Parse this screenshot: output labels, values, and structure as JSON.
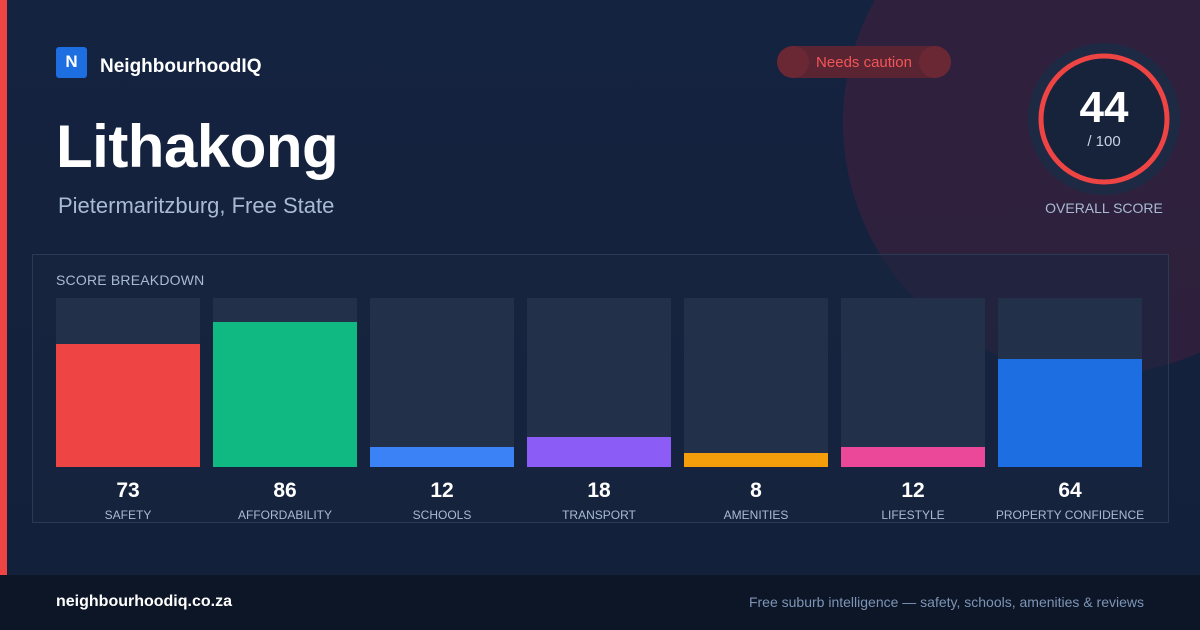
{
  "brand": {
    "logo_letter": "N",
    "name": "NeighbourhoodIQ",
    "logo_color": "#1d6ee0"
  },
  "suburb": {
    "name": "Lithakong",
    "location": "Pietermaritzburg, Free State"
  },
  "status": {
    "label": "Needs caution",
    "color": "#f25656"
  },
  "overall": {
    "score": "44",
    "max": "/ 100",
    "score_fraction": 0.44,
    "caption": "OVERALL SCORE",
    "ring_color": "#ef4444"
  },
  "breakdown": {
    "title": "SCORE BREAKDOWN",
    "max_value": 100
  },
  "chart_data": {
    "type": "bar",
    "title": "SCORE BREAKDOWN",
    "categories": [
      "SAFETY",
      "AFFORDABILITY",
      "SCHOOLS",
      "TRANSPORT",
      "AMENITIES",
      "LIFESTYLE",
      "PROPERTY CONFIDENCE"
    ],
    "values": [
      73,
      86,
      12,
      18,
      8,
      12,
      64
    ],
    "colors": [
      "#ef4444",
      "#10b981",
      "#3b82f6",
      "#8b5cf6",
      "#f59e0b",
      "#ec4899",
      "#1d6ee0"
    ],
    "ylim": [
      0,
      100
    ],
    "grid": false
  },
  "footer": {
    "url": "neighbourhoodiq.co.za",
    "tagline": "Free suburb intelligence — safety, schools, amenities & reviews"
  }
}
